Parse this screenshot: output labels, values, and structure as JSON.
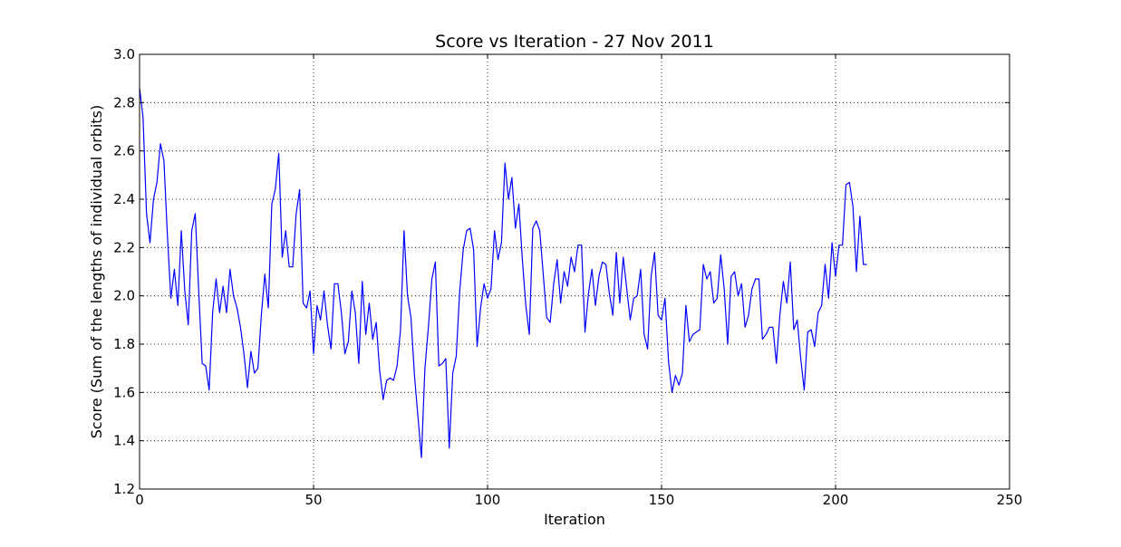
{
  "chart_data": {
    "type": "line",
    "title": "Score vs Iteration - 27 Nov 2011",
    "xlabel": "Iteration",
    "ylabel": "Score (Sum of the lengths of individual orbits)",
    "xlim": [
      0,
      250
    ],
    "ylim": [
      1.2,
      3.0
    ],
    "xticks": [
      "0",
      "50",
      "100",
      "150",
      "200",
      "250"
    ],
    "yticks": [
      "1.2",
      "1.4",
      "1.6",
      "1.8",
      "2.0",
      "2.2",
      "2.4",
      "2.6",
      "2.8",
      "3.0"
    ],
    "grid": true,
    "line_color": "#0000ff",
    "series": [
      {
        "x": [
          0,
          1,
          2,
          3,
          4,
          5,
          6,
          7,
          8,
          9,
          10,
          11,
          12,
          13,
          14,
          15,
          16,
          17,
          18,
          19,
          20,
          21,
          22,
          23,
          24,
          25,
          26,
          27,
          28,
          29,
          30,
          31,
          32,
          33,
          34,
          35,
          36,
          37,
          38,
          39,
          40,
          41,
          42,
          43,
          44,
          45,
          46,
          47,
          48,
          49,
          50,
          51,
          52,
          53,
          54,
          55,
          56,
          57,
          58,
          59,
          60,
          61,
          62,
          63,
          64,
          65,
          66,
          67,
          68,
          69,
          70,
          71,
          72,
          73,
          74,
          75,
          76,
          77,
          78,
          79,
          80,
          81,
          82,
          83,
          84,
          85,
          86,
          87,
          88,
          89,
          90,
          91,
          92,
          93,
          94,
          95,
          96,
          97,
          98,
          99,
          100,
          101,
          102,
          103,
          104,
          105,
          106,
          107,
          108,
          109,
          110,
          111,
          112,
          113,
          114,
          115,
          116,
          117,
          118,
          119,
          120,
          121,
          122,
          123,
          124,
          125,
          126,
          127,
          128,
          129,
          130,
          131,
          132,
          133,
          134,
          135,
          136,
          137,
          138,
          139,
          140,
          141,
          142,
          143,
          144,
          145,
          146,
          147,
          148,
          149,
          150,
          151,
          152,
          153,
          154,
          155,
          156,
          157,
          158,
          159,
          160,
          161,
          162,
          163,
          164,
          165,
          166,
          167,
          168,
          169,
          170,
          171,
          172,
          173,
          174,
          175,
          176,
          177,
          178,
          179,
          180,
          181,
          182,
          183,
          184,
          185,
          186,
          187,
          188,
          189,
          190,
          191,
          192,
          193,
          194,
          195,
          196,
          197,
          198,
          199,
          200,
          201,
          202,
          203,
          204,
          205,
          206,
          207,
          208,
          209
        ],
        "values": [
          2.86,
          2.74,
          2.34,
          2.22,
          2.4,
          2.47,
          2.63,
          2.56,
          2.25,
          1.99,
          2.11,
          1.96,
          2.27,
          2.02,
          1.88,
          2.27,
          2.34,
          2.02,
          1.72,
          1.71,
          1.61,
          1.93,
          2.07,
          1.93,
          2.04,
          1.93,
          2.11,
          2.0,
          1.95,
          1.87,
          1.76,
          1.62,
          1.77,
          1.68,
          1.7,
          1.92,
          2.09,
          1.95,
          2.38,
          2.44,
          2.59,
          2.16,
          2.27,
          2.12,
          2.12,
          2.34,
          2.44,
          1.97,
          1.95,
          2.02,
          1.76,
          1.96,
          1.9,
          2.02,
          1.88,
          1.78,
          2.05,
          2.05,
          1.93,
          1.76,
          1.81,
          2.02,
          1.93,
          1.72,
          2.06,
          1.84,
          1.97,
          1.82,
          1.89,
          1.69,
          1.57,
          1.65,
          1.66,
          1.65,
          1.71,
          1.86,
          2.27,
          2.0,
          1.91,
          1.67,
          1.5,
          1.33,
          1.7,
          1.87,
          2.07,
          2.14,
          1.71,
          1.72,
          1.74,
          1.37,
          1.68,
          1.75,
          2.02,
          2.19,
          2.27,
          2.28,
          2.19,
          1.79,
          1.95,
          2.05,
          1.99,
          2.03,
          2.27,
          2.15,
          2.22,
          2.55,
          2.4,
          2.49,
          2.28,
          2.38,
          2.15,
          1.96,
          1.84,
          2.28,
          2.31,
          2.27,
          2.09,
          1.91,
          1.89,
          2.05,
          2.15,
          1.97,
          2.1,
          2.04,
          2.16,
          2.1,
          2.21,
          2.21,
          1.85,
          2.01,
          2.11,
          1.96,
          2.08,
          2.14,
          2.13,
          2.01,
          1.92,
          2.18,
          1.97,
          2.16,
          2.03,
          1.9,
          1.99,
          2.0,
          2.11,
          1.84,
          1.78,
          2.08,
          2.18,
          1.92,
          1.9,
          1.99,
          1.73,
          1.6,
          1.67,
          1.63,
          1.68,
          1.96,
          1.81,
          1.84,
          1.85,
          1.86,
          2.13,
          2.07,
          2.1,
          1.97,
          1.99,
          2.17,
          2.03,
          1.8,
          2.08,
          2.1,
          2.0,
          2.05,
          1.87,
          1.92,
          2.03,
          2.07,
          2.07,
          1.82,
          1.84,
          1.87,
          1.87,
          1.72,
          1.92,
          2.06,
          1.97,
          2.14,
          1.86,
          1.9,
          1.74,
          1.61,
          1.85,
          1.86,
          1.79,
          1.93,
          1.96,
          2.13,
          1.99,
          2.22,
          2.08,
          2.21,
          2.21,
          2.46,
          2.47,
          2.37,
          2.1,
          2.33,
          2.13,
          2.13
        ]
      }
    ]
  }
}
